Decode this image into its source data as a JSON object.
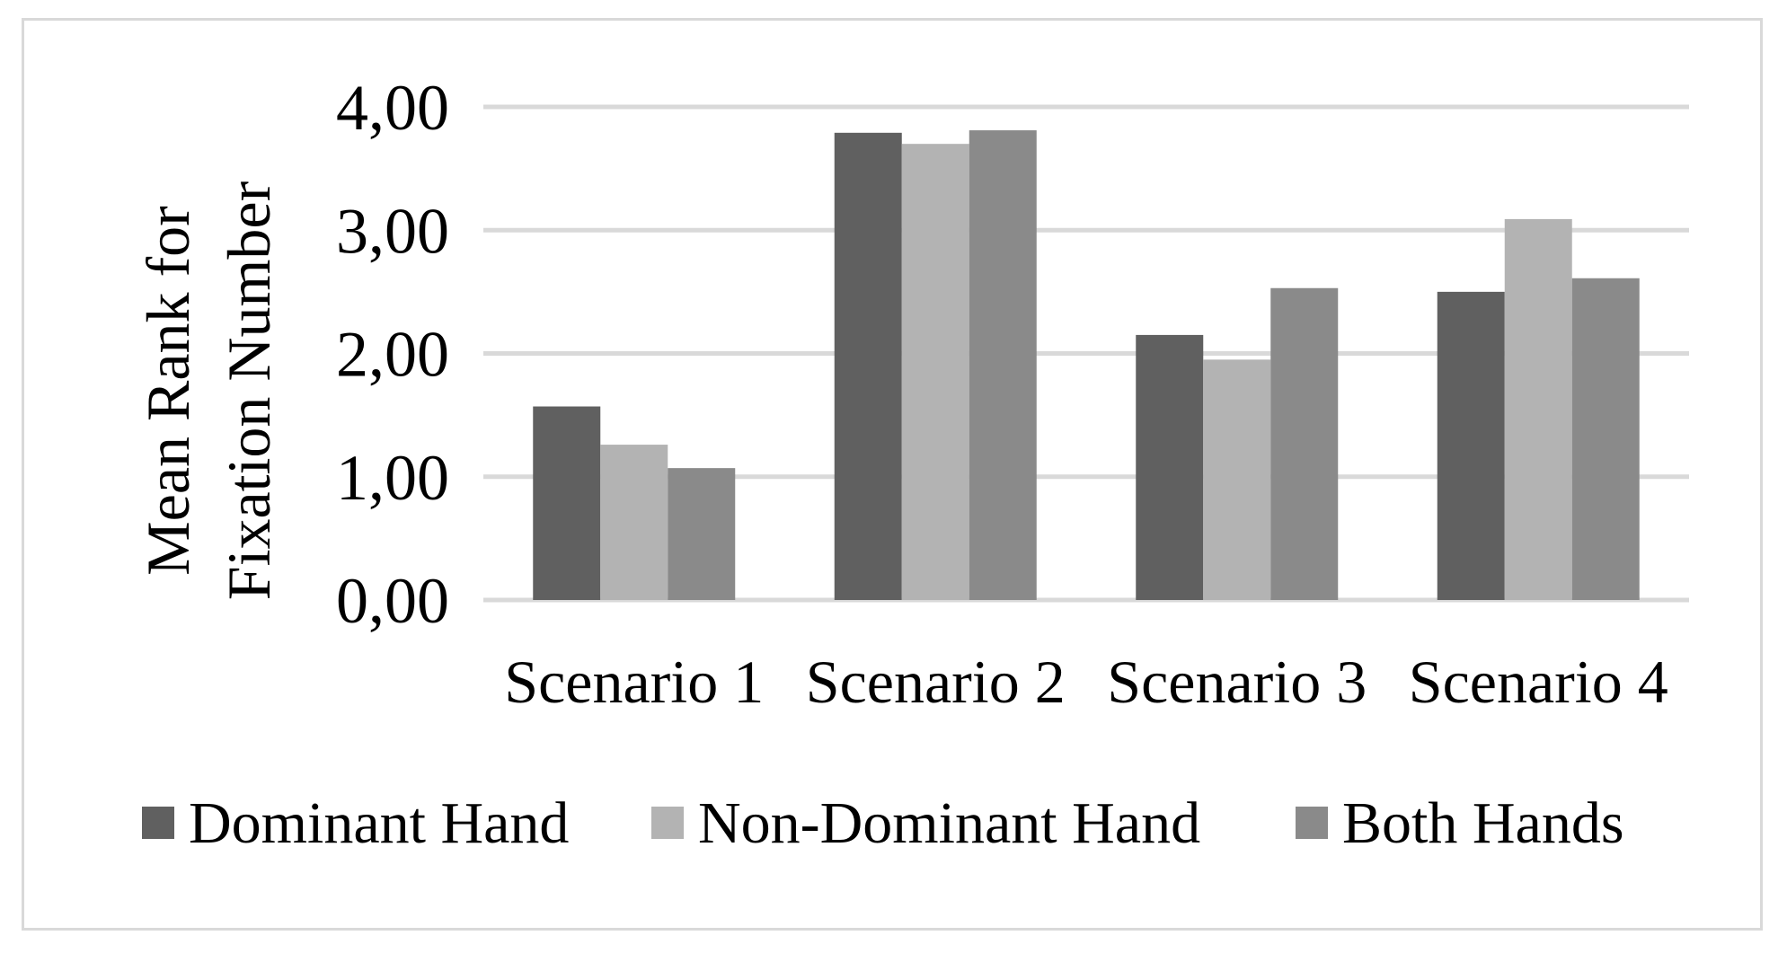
{
  "chart_data": {
    "type": "bar",
    "title": "",
    "xlabel": "",
    "ylabel_lines": [
      "Mean Rank for",
      "Fixation Number"
    ],
    "categories": [
      "Scenario 1",
      "Scenario 2",
      "Scenario 3",
      "Scenario 4"
    ],
    "series": [
      {
        "name": "Dominant Hand",
        "color": "#606060",
        "values": [
          1.57,
          3.79,
          2.15,
          2.5
        ]
      },
      {
        "name": "Non-Dominant Hand",
        "color": "#b3b3b3",
        "values": [
          1.26,
          3.7,
          1.95,
          3.09
        ]
      },
      {
        "name": "Both Hands",
        "color": "#8a8a8a",
        "values": [
          1.07,
          3.81,
          2.53,
          2.61
        ]
      }
    ],
    "ylim": [
      0,
      4
    ],
    "yticks": [
      "0,00",
      "1,00",
      "2,00",
      "3,00",
      "4,00"
    ],
    "grid": true,
    "gridline_color": "#d9d9d9",
    "legend_position": "bottom"
  }
}
